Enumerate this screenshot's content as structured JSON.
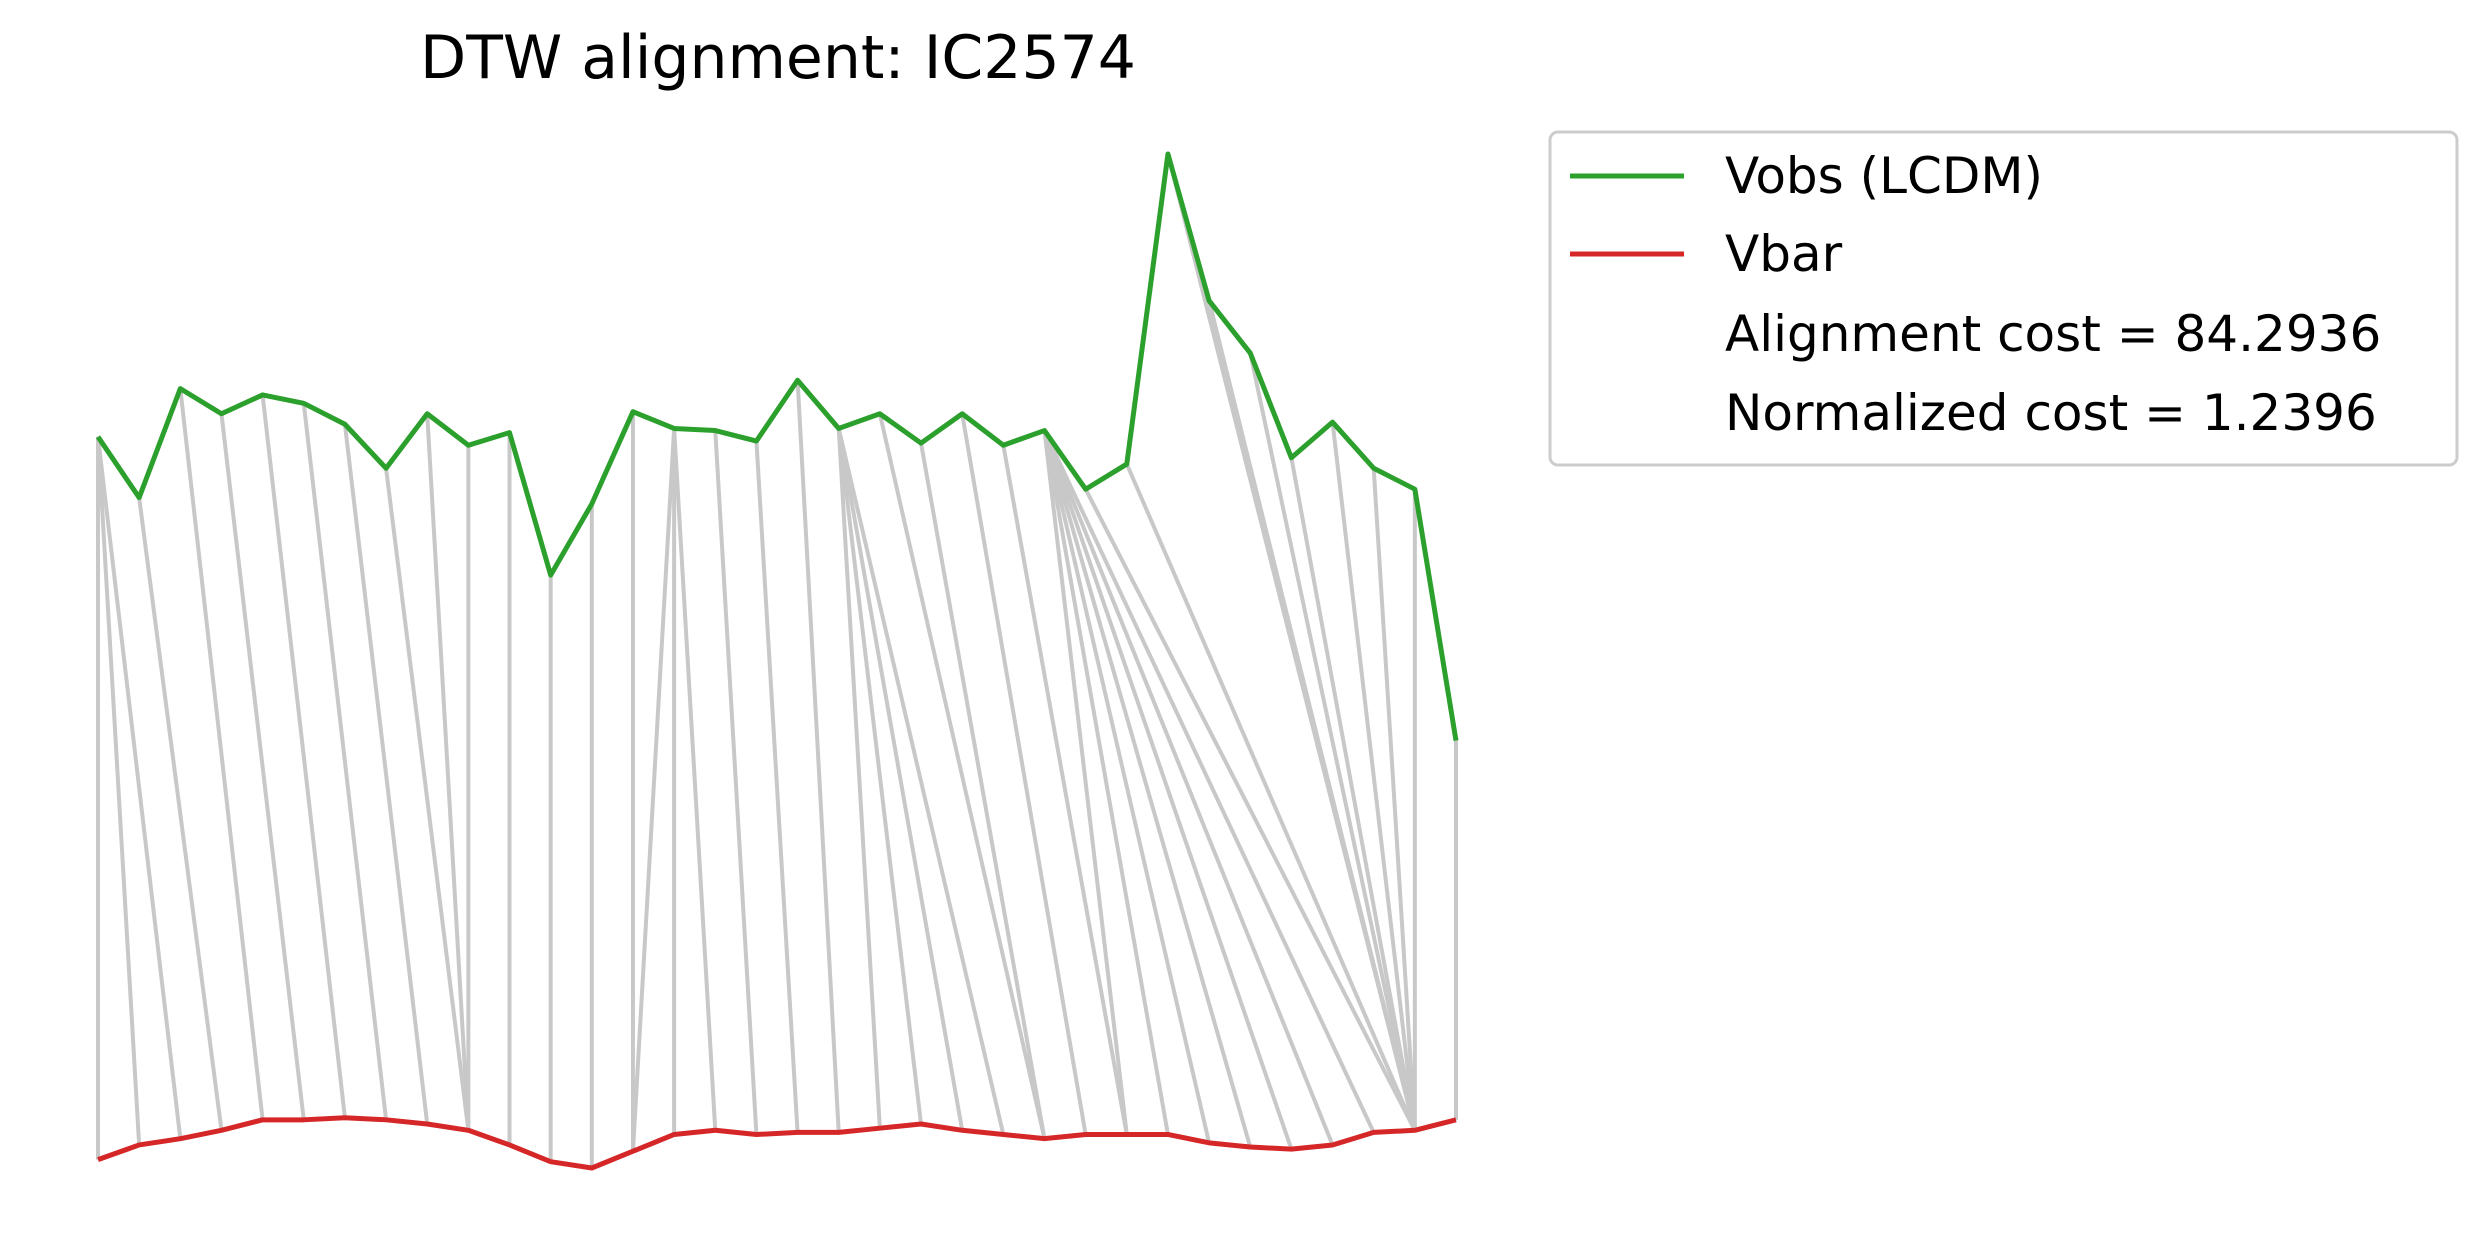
{
  "chart_data": {
    "type": "line",
    "title": "DTW alignment: IC2574",
    "xlabel": "",
    "ylabel": "",
    "axes_visible": false,
    "legend_placement": "outside-top-right",
    "colors": {
      "Vobs (LCDM)": "#2ca02c",
      "Vbar": "#d62728",
      "alignment": "#c8c8c8"
    },
    "series": [
      {
        "name": "Vobs (LCDM)",
        "values": [
          1.25,
          0.96,
          1.48,
          1.36,
          1.45,
          1.41,
          1.31,
          1.1,
          1.36,
          1.21,
          1.27,
          0.59,
          0.93,
          1.37,
          1.29,
          1.28,
          1.23,
          1.52,
          1.29,
          1.36,
          1.22,
          1.36,
          1.21,
          1.28,
          1.0,
          1.12,
          2.6,
          1.9,
          1.65,
          1.15,
          1.32,
          1.1,
          1.0,
          -0.2
        ]
      },
      {
        "name": "Vbar",
        "values": [
          -2.2,
          -2.13,
          -2.1,
          -2.06,
          -2.01,
          -2.01,
          -2.0,
          -2.01,
          -2.03,
          -2.06,
          -2.13,
          -2.21,
          -2.24,
          -2.16,
          -2.08,
          -2.06,
          -2.08,
          -2.07,
          -2.07,
          -2.05,
          -2.03,
          -2.06,
          -2.08,
          -2.1,
          -2.08,
          -2.08,
          -2.08,
          -2.12,
          -2.14,
          -2.15,
          -2.13,
          -2.07,
          -2.06,
          -2.01
        ]
      }
    ],
    "alignment_path": [
      [
        0,
        0
      ],
      [
        0,
        1
      ],
      [
        0,
        2
      ],
      [
        1,
        3
      ],
      [
        2,
        4
      ],
      [
        3,
        5
      ],
      [
        4,
        6
      ],
      [
        5,
        7
      ],
      [
        6,
        8
      ],
      [
        7,
        9
      ],
      [
        8,
        9
      ],
      [
        9,
        9
      ],
      [
        10,
        10
      ],
      [
        11,
        11
      ],
      [
        12,
        12
      ],
      [
        13,
        13
      ],
      [
        14,
        13
      ],
      [
        14,
        14
      ],
      [
        14,
        15
      ],
      [
        15,
        16
      ],
      [
        16,
        17
      ],
      [
        17,
        18
      ],
      [
        18,
        19
      ],
      [
        18,
        20
      ],
      [
        18,
        21
      ],
      [
        18,
        22
      ],
      [
        19,
        23
      ],
      [
        20,
        23
      ],
      [
        21,
        24
      ],
      [
        22,
        25
      ],
      [
        23,
        25
      ],
      [
        23,
        26
      ],
      [
        23,
        27
      ],
      [
        23,
        28
      ],
      [
        23,
        29
      ],
      [
        23,
        30
      ],
      [
        23,
        31
      ],
      [
        24,
        32
      ],
      [
        25,
        32
      ],
      [
        26,
        32
      ],
      [
        27,
        32
      ],
      [
        28,
        32
      ],
      [
        29,
        32
      ],
      [
        30,
        32
      ],
      [
        31,
        32
      ],
      [
        32,
        32
      ],
      [
        33,
        33
      ]
    ],
    "legend": [
      {
        "label": "Vobs (LCDM)",
        "color": "#2ca02c",
        "swatch": true
      },
      {
        "label": "Vbar",
        "color": "#d62728",
        "swatch": true
      },
      {
        "label": "Alignment cost = 84.2936",
        "swatch": false
      },
      {
        "label": "Normalized cost = 1.2396",
        "swatch": false
      }
    ]
  }
}
